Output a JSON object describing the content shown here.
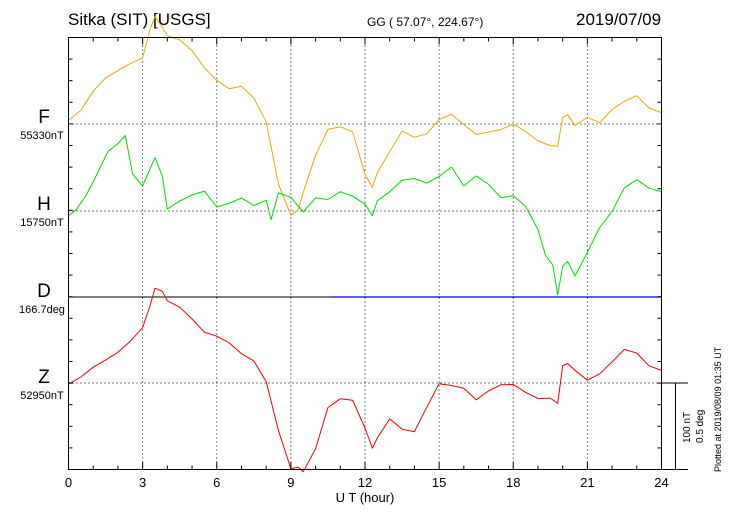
{
  "header": {
    "station": "Sitka (SIT)  [USGS]",
    "coords": "GG ( 57.07°, 224.67°)",
    "date": "2019/07/09"
  },
  "components": [
    {
      "key": "F",
      "letter": "F",
      "baseline": "55330nT",
      "color": "#f0a800"
    },
    {
      "key": "H",
      "letter": "H",
      "baseline": "15750nT",
      "color": "#00dd00"
    },
    {
      "key": "D",
      "letter": "D",
      "baseline": "166.7deg",
      "color": "#0000dd"
    },
    {
      "key": "Z",
      "letter": "Z",
      "baseline": "52950nT",
      "color": "#ee0000"
    }
  ],
  "scale": {
    "nT": "100 nT",
    "deg": "0.5 deg"
  },
  "plotted_note": "Plotted at 2019/08/09 01:35 UT",
  "chart_data": {
    "type": "line",
    "xlabel": "U T (hour)",
    "xlim": [
      0,
      24
    ],
    "xticks": [
      0,
      3,
      6,
      9,
      12,
      15,
      18,
      21,
      24
    ],
    "grid": true,
    "units": {
      "F": "nT",
      "H": "nT",
      "D": "deg",
      "Z": "nT"
    },
    "series": [
      {
        "name": "F",
        "baseline": 55330,
        "x": [
          0,
          0.5,
          1,
          1.5,
          2,
          2.5,
          3,
          3.3,
          3.5,
          3.8,
          4,
          4.5,
          5,
          5.5,
          6,
          6.5,
          7,
          7.5,
          8,
          8.5,
          9,
          9.3,
          9.5,
          10,
          10.5,
          11,
          11.5,
          12,
          12.3,
          12.5,
          13,
          13.5,
          14,
          14.5,
          15,
          15.5,
          16,
          16.5,
          17,
          17.5,
          18,
          18.5,
          19,
          19.5,
          19.8,
          20,
          20.2,
          20.5,
          21,
          21.5,
          22,
          22.5,
          23,
          23.5,
          24
        ],
        "y": [
          5,
          17,
          38,
          52,
          60,
          69,
          77,
          110,
          124,
          110,
          100,
          96,
          85,
          66,
          51,
          40,
          42,
          29,
          3,
          -68,
          -104,
          -99,
          -80,
          -37,
          -6,
          -2,
          -8,
          -58,
          -74,
          -57,
          -32,
          -7,
          -14,
          -11,
          4,
          10,
          -1,
          -11,
          -8,
          -6,
          -1,
          -10,
          -20,
          -24,
          -24,
          8,
          10,
          -3,
          7,
          2,
          18,
          27,
          32,
          17,
          12
        ]
      },
      {
        "name": "H",
        "baseline": 15750,
        "x": [
          0,
          0.3,
          0.7,
          1,
          1.3,
          1.6,
          2,
          2.3,
          2.6,
          3,
          3.5,
          3.8,
          4,
          4.5,
          5,
          5.5,
          6,
          6.5,
          7,
          7.5,
          8,
          8.2,
          8.5,
          9,
          9.5,
          10,
          10.5,
          11,
          11.5,
          12,
          12.3,
          12.5,
          13,
          13.5,
          14,
          14.5,
          15,
          15.5,
          16,
          16.5,
          17,
          17.5,
          18,
          18.5,
          19,
          19.3,
          19.6,
          19.8,
          20,
          20.2,
          20.5,
          21,
          21.5,
          22,
          22.5,
          23,
          23.5,
          24
        ],
        "y": [
          -5,
          0,
          16,
          33,
          52,
          70,
          78,
          86,
          41,
          28,
          62,
          41,
          3,
          11,
          17,
          22,
          5,
          10,
          16,
          6,
          11,
          -11,
          21,
          17,
          0,
          15,
          12,
          21,
          17,
          9,
          -4,
          12,
          21,
          34,
          37,
          33,
          41,
          51,
          28,
          39,
          30,
          16,
          19,
          6,
          -22,
          -52,
          -63,
          -96,
          -62,
          -57,
          -75,
          -49,
          -20,
          0,
          28,
          37,
          26,
          21
        ]
      },
      {
        "name": "D",
        "baseline": 166.7,
        "x": [
          10.6,
          24
        ],
        "y": [
          0,
          0
        ]
      },
      {
        "name": "Z",
        "baseline": 52950,
        "x": [
          0,
          0.5,
          1,
          1.5,
          2,
          2.5,
          3,
          3.3,
          3.5,
          3.8,
          4,
          4.5,
          5,
          5.5,
          6,
          6.5,
          7,
          7.5,
          8,
          8.5,
          9,
          9.3,
          9.5,
          10,
          10.5,
          11,
          11.5,
          12,
          12.3,
          12.5,
          13,
          13.5,
          14,
          14.5,
          15,
          15.5,
          16,
          16.5,
          17,
          17.5,
          18,
          18.5,
          19,
          19.5,
          19.8,
          20,
          20.2,
          20.5,
          21,
          21.5,
          22,
          22.5,
          23,
          23.5,
          24
        ],
        "y": [
          0,
          7,
          17,
          25,
          35,
          49,
          65,
          89,
          108,
          104,
          94,
          88,
          75,
          59,
          53,
          45,
          33,
          26,
          3,
          -54,
          -99,
          -98,
          -103,
          -75,
          -27,
          -17,
          -20,
          -53,
          -76,
          -63,
          -40,
          -52,
          -56,
          -29,
          -2,
          -3,
          -5,
          -18,
          -9,
          -3,
          -3,
          -11,
          -17,
          -16,
          -23,
          19,
          21,
          14,
          4,
          12,
          25,
          38,
          33,
          19,
          15
        ]
      }
    ]
  }
}
